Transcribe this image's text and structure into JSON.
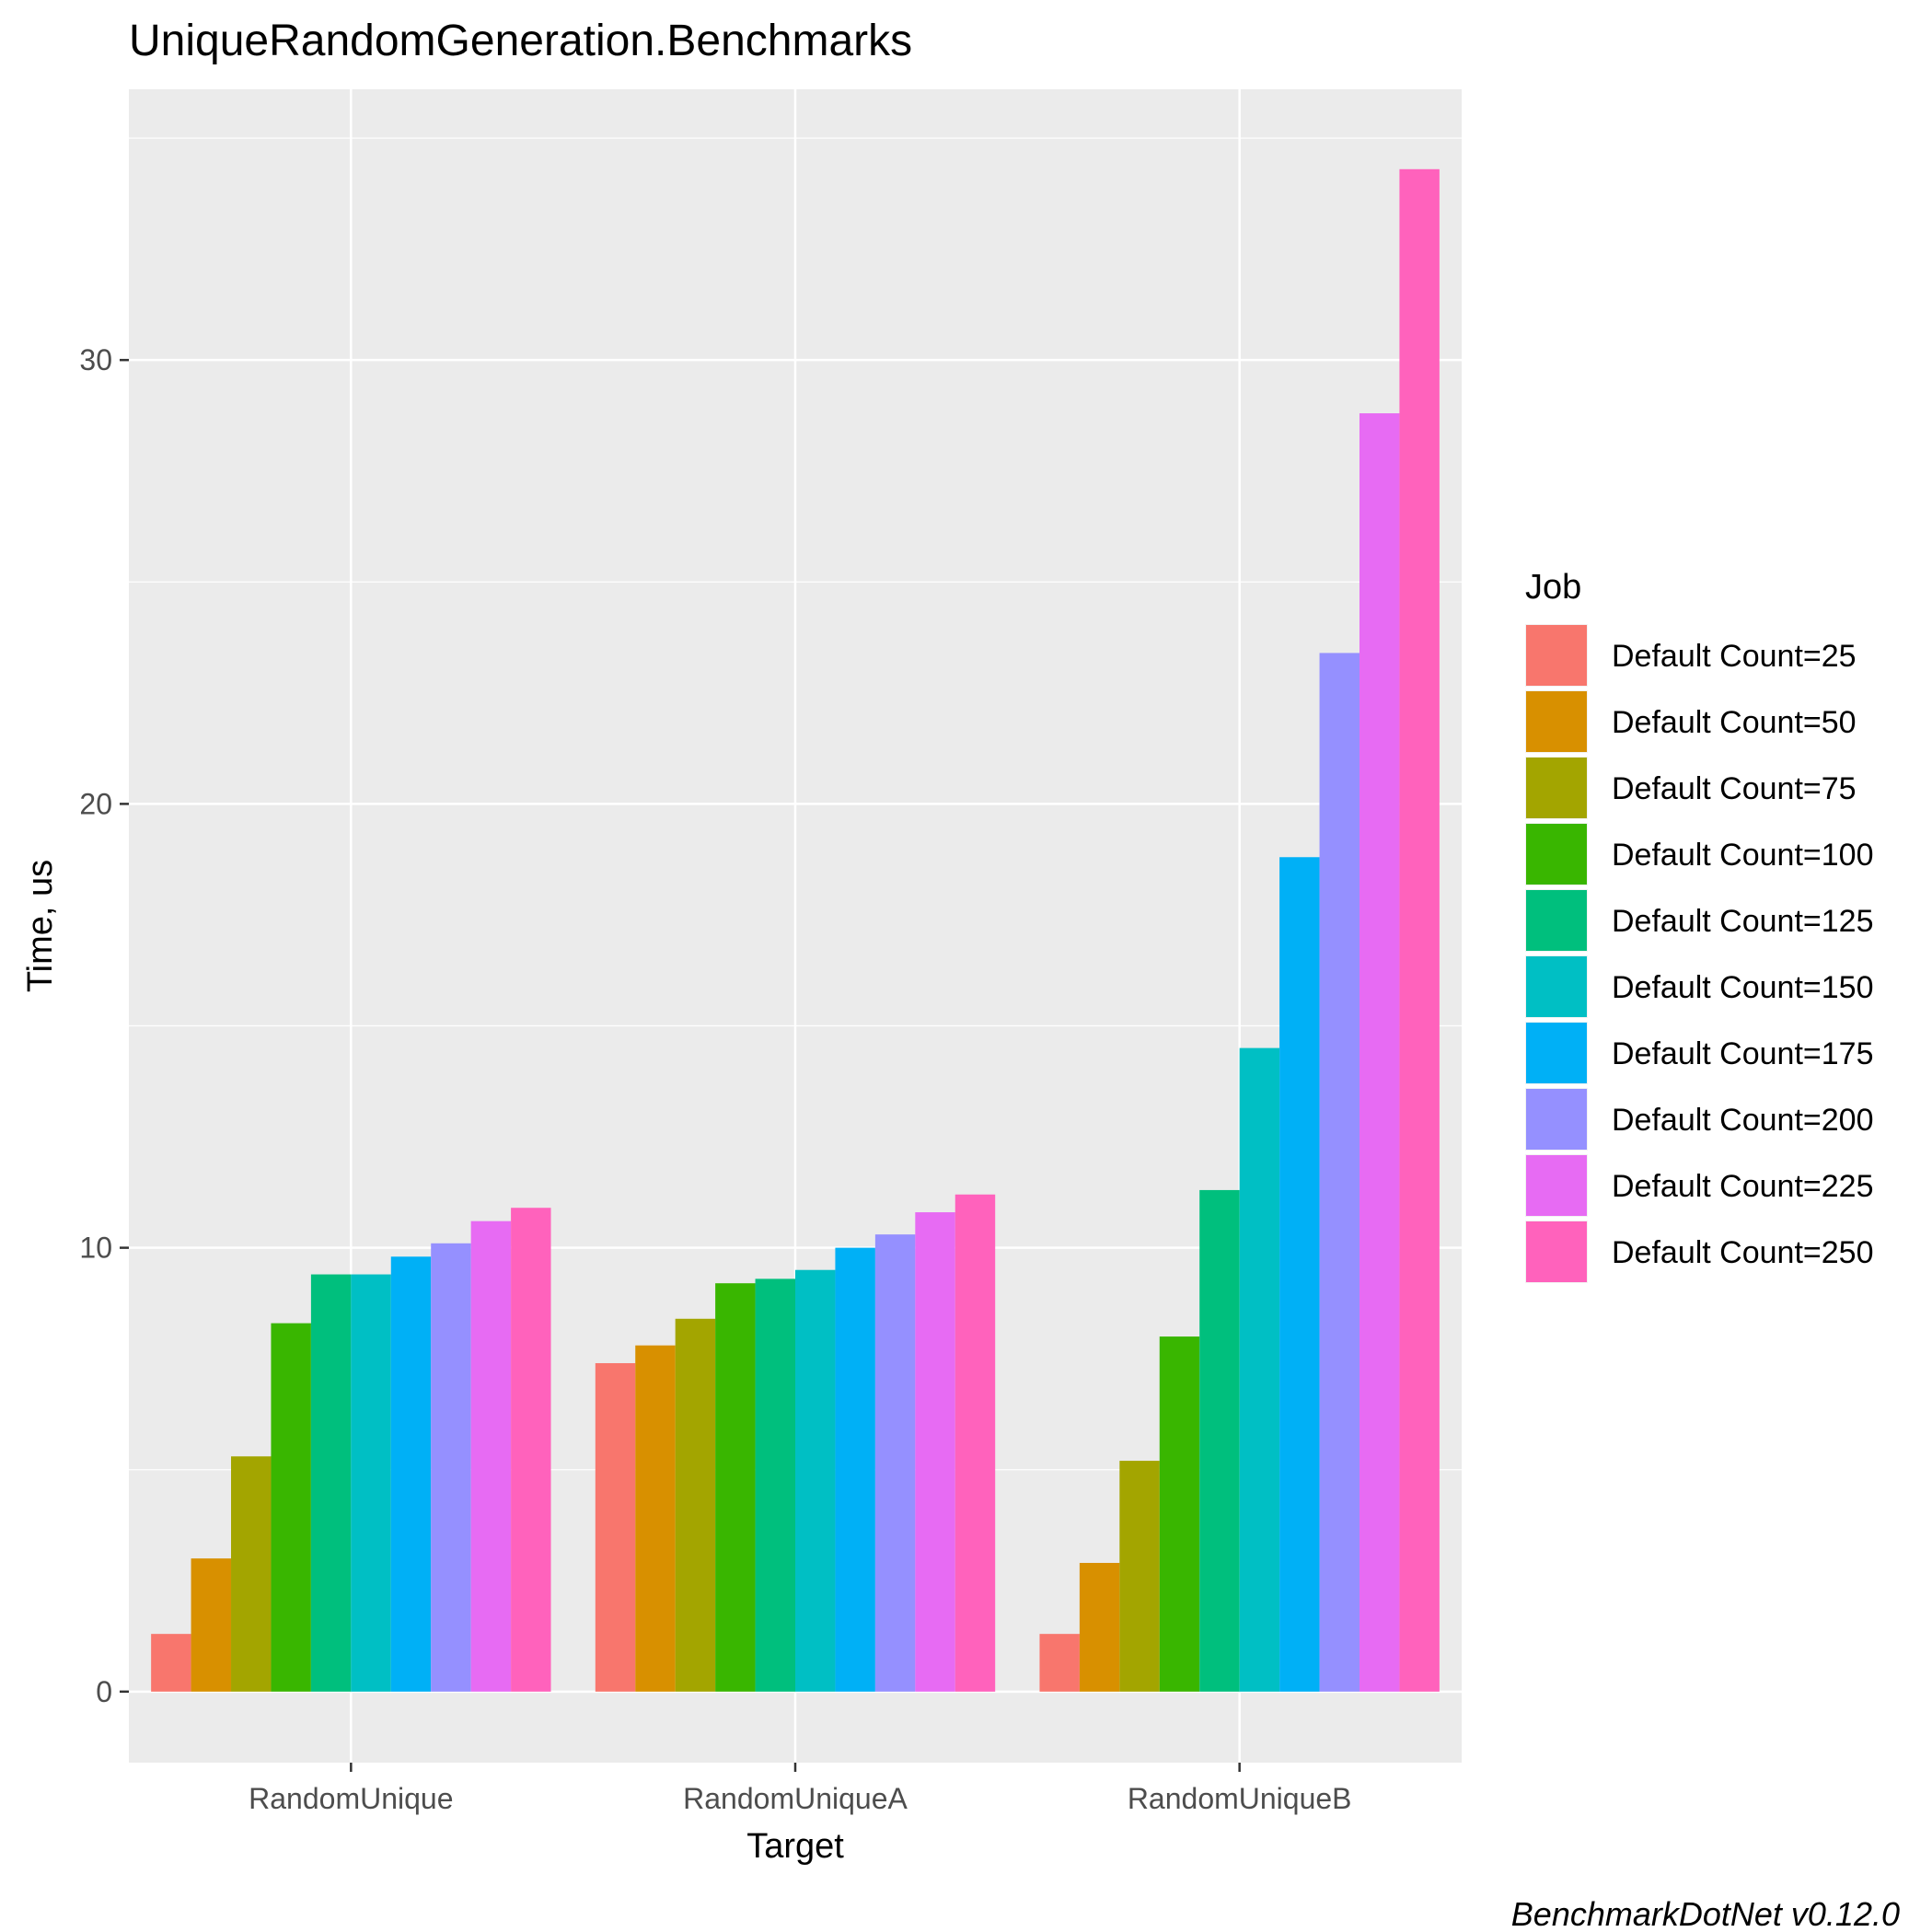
{
  "chart_data": {
    "type": "bar",
    "title": "UniqueRandomGeneration.Benchmarks",
    "xlabel": "Target",
    "ylabel": "Time, us",
    "categories": [
      "RandomUnique",
      "RandomUniqueA",
      "RandomUniqueB"
    ],
    "yticks": [
      0,
      10,
      20,
      30
    ],
    "ylim": [
      -1.6,
      36.1
    ],
    "grid": true,
    "legend": {
      "title": "Job",
      "position": "right"
    },
    "series": [
      {
        "name": "Default Count=25",
        "color": "#F8766D",
        "values": [
          1.3,
          7.4,
          1.3
        ]
      },
      {
        "name": "Default Count=50",
        "color": "#D89000",
        "values": [
          3.0,
          7.8,
          2.9
        ]
      },
      {
        "name": "Default Count=75",
        "color": "#A3A500",
        "values": [
          5.3,
          8.4,
          5.2
        ]
      },
      {
        "name": "Default Count=100",
        "color": "#39B600",
        "values": [
          8.3,
          9.2,
          8.0
        ]
      },
      {
        "name": "Default Count=125",
        "color": "#00BF7D",
        "values": [
          9.4,
          9.3,
          11.3
        ]
      },
      {
        "name": "Default Count=150",
        "color": "#00BFC4",
        "values": [
          9.4,
          9.5,
          14.5
        ]
      },
      {
        "name": "Default Count=175",
        "color": "#00B0F6",
        "values": [
          9.8,
          10.0,
          18.8
        ]
      },
      {
        "name": "Default Count=200",
        "color": "#9590FF",
        "values": [
          10.1,
          10.3,
          23.4
        ]
      },
      {
        "name": "Default Count=225",
        "color": "#E76BF3",
        "values": [
          10.6,
          10.8,
          28.8
        ]
      },
      {
        "name": "Default Count=250",
        "color": "#FF62BC",
        "values": [
          10.9,
          11.2,
          34.3
        ]
      }
    ],
    "caption": "BenchmarkDotNet v0.12.0"
  }
}
